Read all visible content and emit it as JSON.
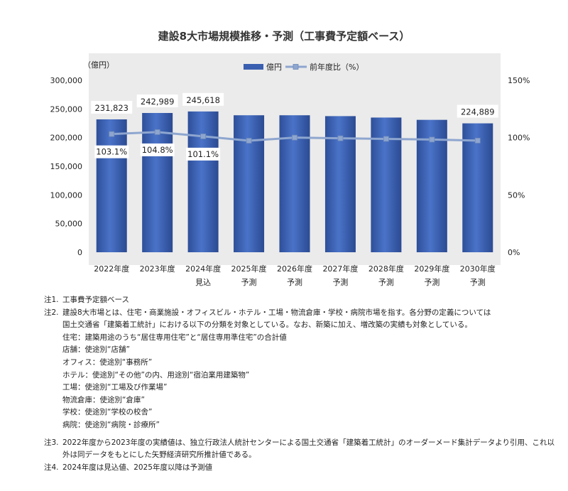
{
  "chart_data": {
    "type": "bar",
    "title": "建設8大市場規模推移・予測（工事費予定額ベース）",
    "y_unit_label": "（億円）",
    "categories": [
      [
        "2022年度",
        ""
      ],
      [
        "2023年度",
        ""
      ],
      [
        "2024年度",
        "見込"
      ],
      [
        "2025年度",
        "予測"
      ],
      [
        "2026年度",
        "予測"
      ],
      [
        "2027年度",
        "予測"
      ],
      [
        "2028年度",
        "予測"
      ],
      [
        "2029年度",
        "予測"
      ],
      [
        "2030年度",
        "予測"
      ]
    ],
    "series": [
      {
        "name": "億円",
        "type": "bar",
        "color": "#3a5fb0",
        "values": [
          231823,
          242989,
          245618,
          239000,
          239000,
          237500,
          235000,
          231000,
          224889
        ]
      },
      {
        "name": "前年度比（%）",
        "type": "line",
        "axis": "right",
        "color": "#8ea6cf",
        "values": [
          103.1,
          104.8,
          101.1,
          97.3,
          100.0,
          99.4,
          98.9,
          98.3,
          97.4
        ]
      }
    ],
    "bar_value_labels": [
      "231,823",
      "242,989",
      "245,618",
      "",
      "",
      "",
      "",
      "",
      "224,889"
    ],
    "line_value_labels": [
      "103.1%",
      "104.8%",
      "101.1%",
      "",
      "",
      "",
      "",
      "",
      ""
    ],
    "y_left": {
      "min": 0,
      "max": 300000,
      "ticks": [
        "0",
        "50,000",
        "100,000",
        "150,000",
        "200,000",
        "250,000",
        "300,000"
      ]
    },
    "y_right": {
      "min": 0,
      "max": 150,
      "ticks": [
        "0%",
        "50%",
        "100%",
        "150%"
      ]
    },
    "legend_position": "top-center",
    "grid": false
  },
  "notes": [
    {
      "label": "注1.",
      "lines": [
        "工事費予定額ベース"
      ]
    },
    {
      "label": "注2.",
      "lines": [
        "建設8大市場とは、住宅・商業施設・オフィスビル・ホテル・工場・物流倉庫・学校・病院市場を指す。各分野の定義については",
        "国土交通省「建築着工統計」における以下の分類を対象としている。なお、新築に加え、増改築の実績も対象としている。",
        "住宅：建築用途のうち“居住専用住宅”と“居住専用準住宅”の合計値",
        "店舗：使途別“店舗”",
        "オフィス：使途別“事務所”",
        "ホテル：使途別“その他”の内、用途別“宿泊業用建築物”",
        "工場：使途別“工場及び作業場”",
        "物流倉庫：使途別“倉庫”",
        "学校：使途別“学校の校舎”",
        "病院：使途別“病院・診療所”"
      ]
    },
    {
      "label": "注3.",
      "lines": [
        "2022年度から2023年度の実績値は、独立行政法人統計センターによる国土交通省「建築着工統計」のオーダーメード集計データより引用、これ以外は同データをもとにした矢野経済研究所推計値である。"
      ],
      "wrap": true
    },
    {
      "label": "注4.",
      "lines": [
        "2024年度は見込値、2025年度以降は予測値"
      ]
    }
  ]
}
